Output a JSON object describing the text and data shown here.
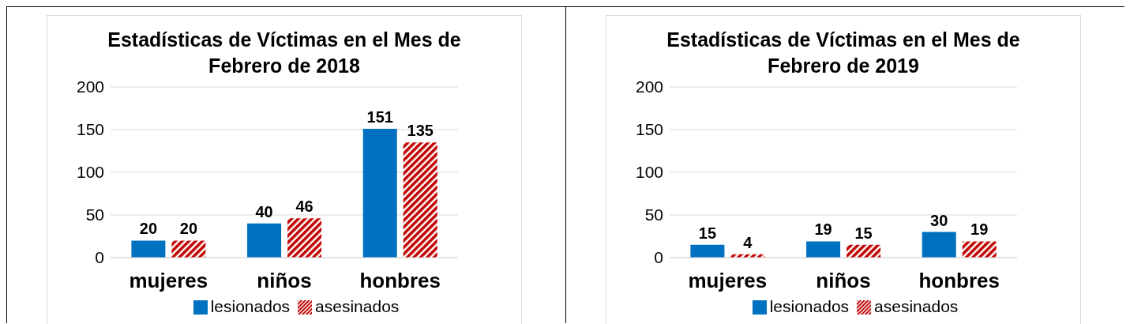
{
  "chart_data": [
    {
      "type": "bar",
      "title": "Estadísticas de Víctimas en el Mes de Febrero de 2018",
      "categories": [
        "mujeres",
        "niños",
        "honbres"
      ],
      "series": [
        {
          "name": "lesionados",
          "color": "#0070c0",
          "values": [
            20,
            40,
            151
          ]
        },
        {
          "name": "asesinados",
          "color": "#c00000",
          "values": [
            20,
            46,
            135
          ]
        }
      ],
      "ylim": [
        0,
        200
      ],
      "yticks": [
        0,
        50,
        100,
        150,
        200
      ],
      "grid": "y",
      "legend": "bottom",
      "data_labels": true
    },
    {
      "type": "bar",
      "title": "Estadísticas de Víctimas en el Mes de Febrero de 2019",
      "categories": [
        "mujeres",
        "niños",
        "honbres"
      ],
      "series": [
        {
          "name": "lesionados",
          "color": "#0070c0",
          "values": [
            15,
            19,
            30
          ]
        },
        {
          "name": "asesinados",
          "color": "#c00000",
          "values": [
            4,
            15,
            19
          ]
        }
      ],
      "ylim": [
        0,
        200
      ],
      "yticks": [
        0,
        50,
        100,
        150,
        200
      ],
      "grid": "y",
      "legend": "bottom",
      "data_labels": true
    }
  ]
}
